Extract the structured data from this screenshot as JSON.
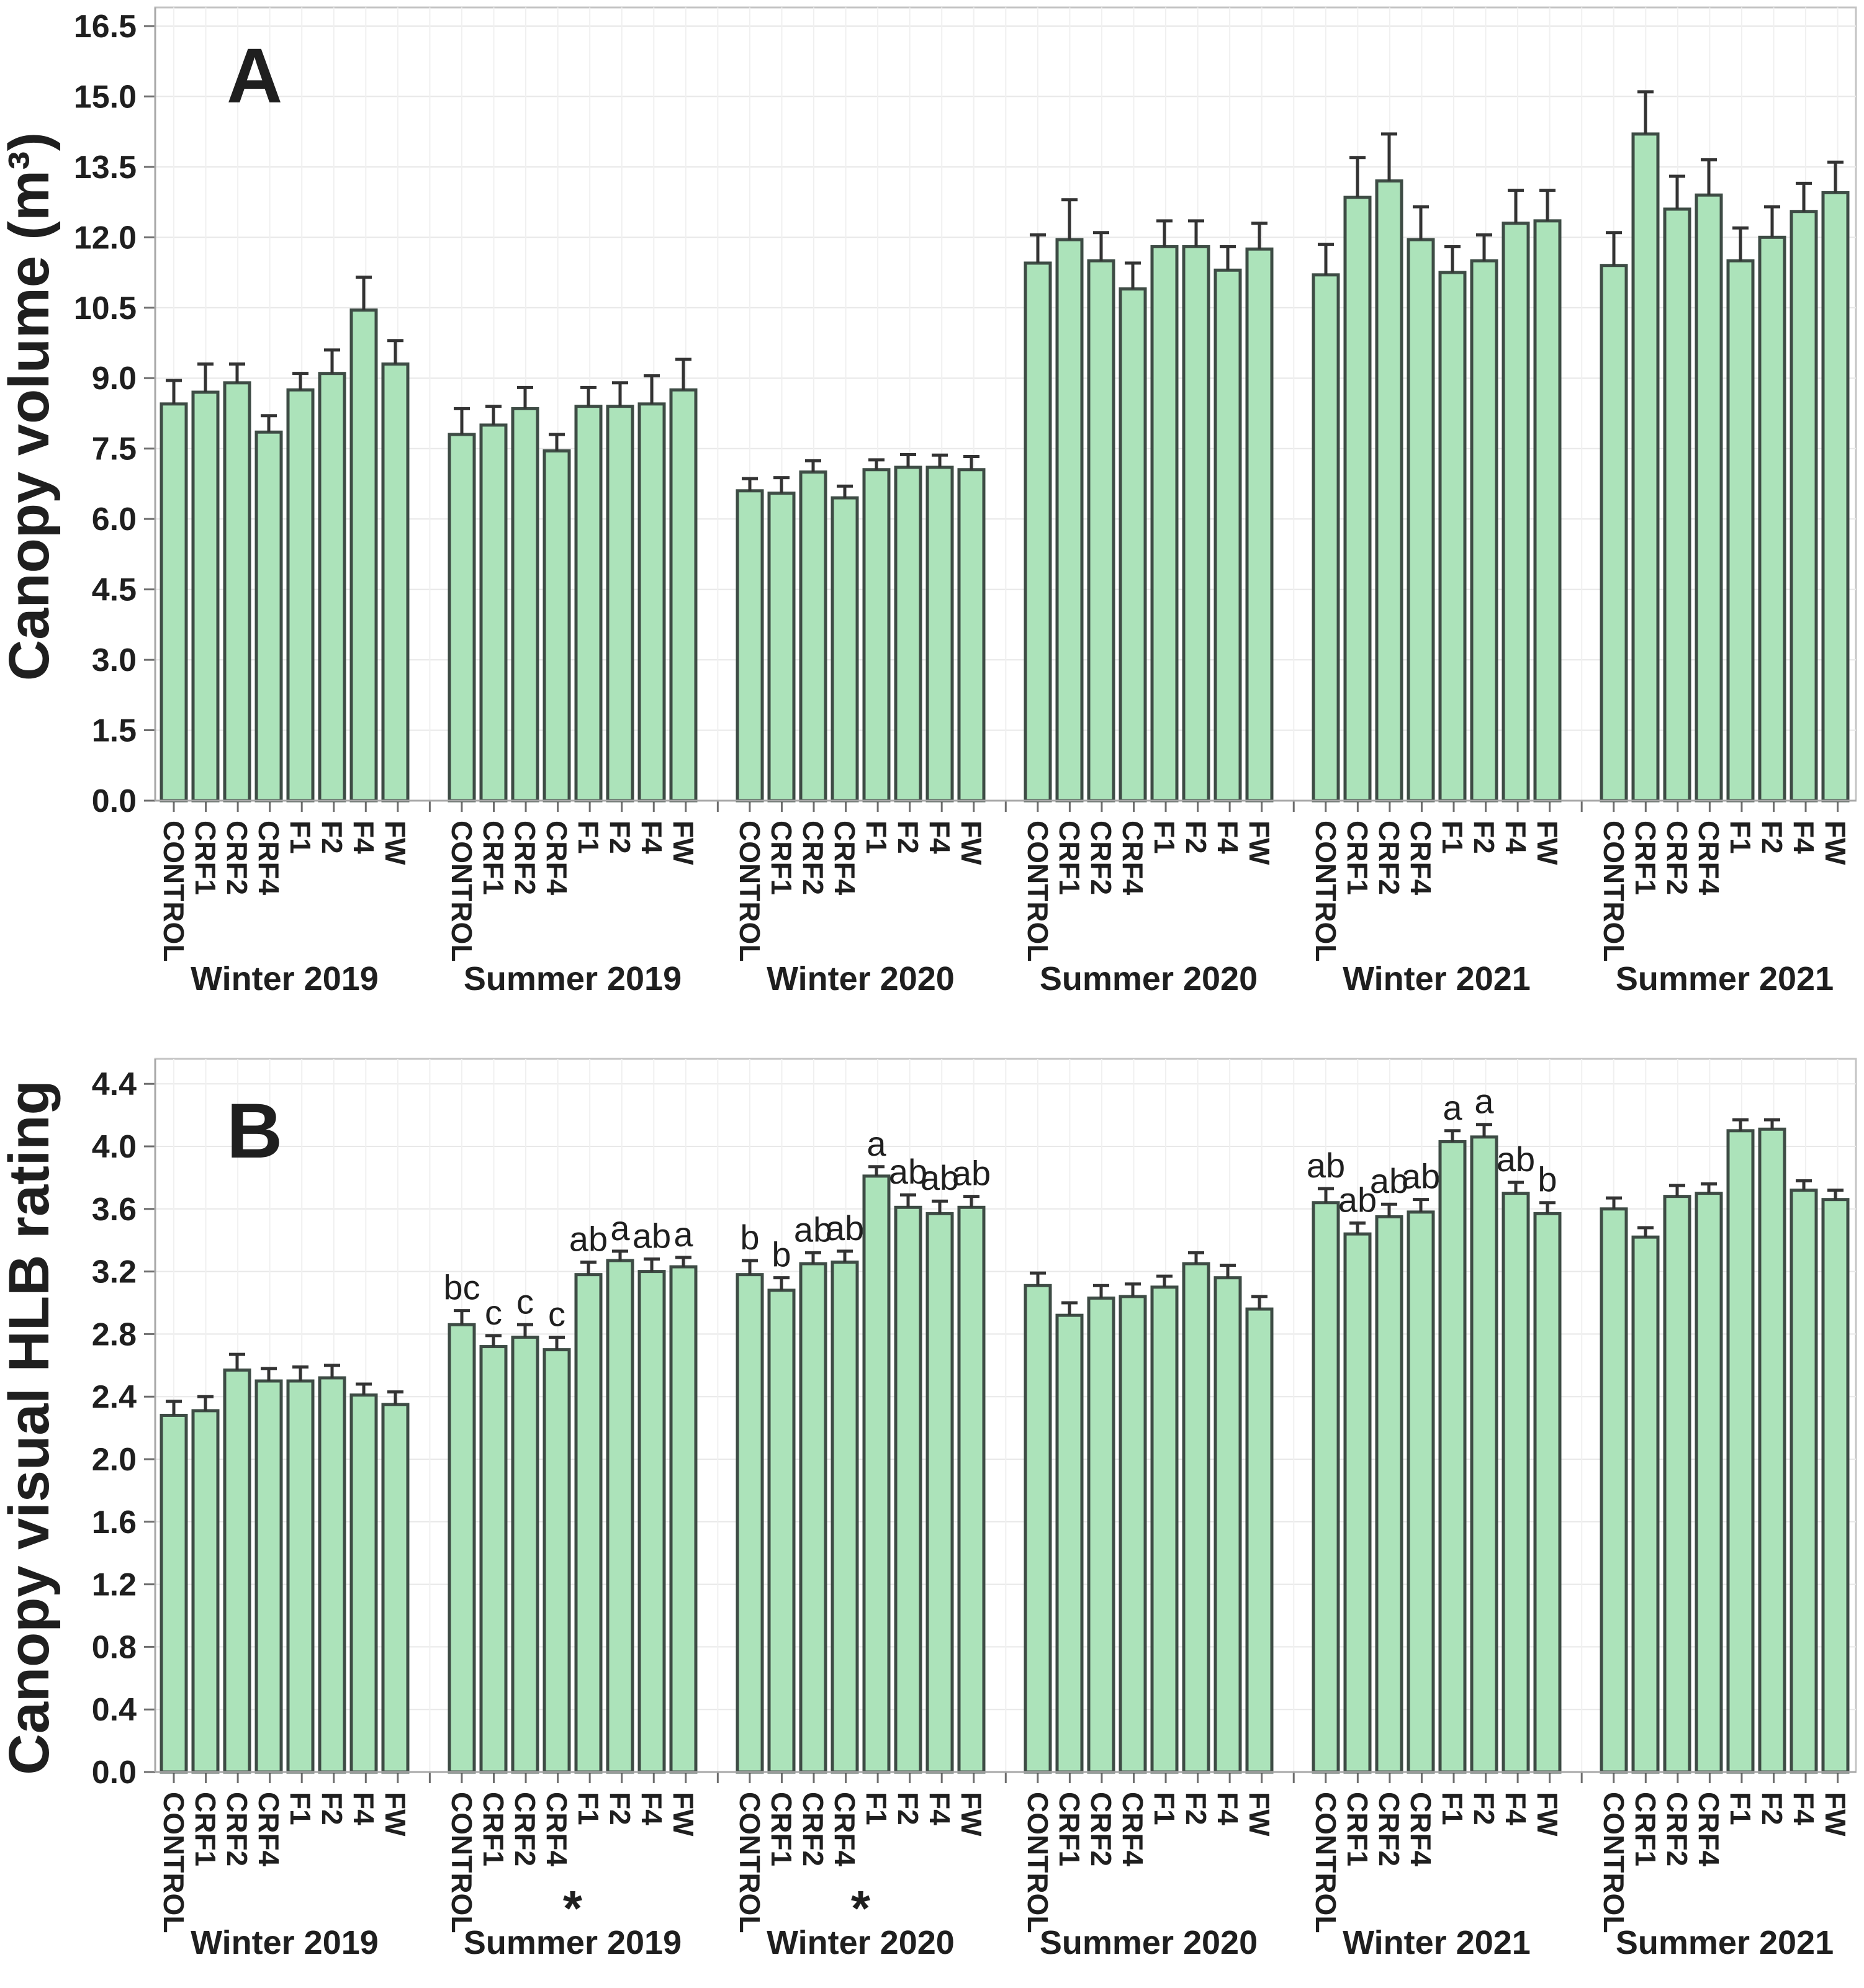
{
  "figure": {
    "background": "#ffffff",
    "description_visible_panels": [
      "A",
      "B"
    ]
  },
  "colors": {
    "bar_fill": "#ace3ba",
    "bar_edge": "#3e4c45",
    "error_bar": "#333333",
    "grid_horizontal": "#e8e8e8",
    "grid_vertical": "#f0f0f0",
    "frame": "#c4c4c4",
    "tick": "#6e6e6e",
    "text": "#1f1f1f"
  },
  "treatments": [
    "CONTROL",
    "CRF1",
    "CRF2",
    "CRF4",
    "F1",
    "F2",
    "F4",
    "FW"
  ],
  "groups": [
    "Winter 2019",
    "Summer 2019",
    "Winter 2020",
    "Summer 2020",
    "Winter 2021",
    "Summer 2021"
  ],
  "chart_data": [
    {
      "type": "bar",
      "panel_letter": "A",
      "ylabel": "Canopy volume (m³)",
      "xlabel": "",
      "ylim": [
        0,
        16.5
      ],
      "ytick_step": 1.5,
      "yticks": [
        "0.0",
        "1.5",
        "3.0",
        "4.5",
        "6.0",
        "7.5",
        "9.0",
        "10.5",
        "12.0",
        "13.5",
        "15.0",
        "16.5"
      ],
      "grid": true,
      "legend": "none",
      "categories": [
        "CONTROL",
        "CRF1",
        "CRF2",
        "CRF4",
        "F1",
        "F2",
        "F4",
        "FW"
      ],
      "series": [
        {
          "group": "Winter 2019",
          "values": [
            8.45,
            8.7,
            8.9,
            7.85,
            8.75,
            9.1,
            10.45,
            9.3
          ],
          "errors": [
            0.5,
            0.6,
            0.4,
            0.35,
            0.35,
            0.5,
            0.7,
            0.5
          ]
        },
        {
          "group": "Summer 2019",
          "values": [
            7.8,
            8.0,
            8.35,
            7.45,
            8.4,
            8.4,
            8.45,
            8.75
          ],
          "errors": [
            0.55,
            0.4,
            0.45,
            0.35,
            0.4,
            0.5,
            0.6,
            0.65
          ]
        },
        {
          "group": "Winter 2020",
          "values": [
            6.6,
            6.55,
            7.0,
            6.45,
            7.05,
            7.1,
            7.1,
            7.05
          ],
          "errors": [
            0.26,
            0.33,
            0.24,
            0.25,
            0.21,
            0.27,
            0.26,
            0.28
          ]
        },
        {
          "group": "Summer 2020",
          "values": [
            11.45,
            11.95,
            11.5,
            10.9,
            11.8,
            11.8,
            11.3,
            11.75
          ],
          "errors": [
            0.6,
            0.85,
            0.6,
            0.55,
            0.55,
            0.55,
            0.5,
            0.55
          ]
        },
        {
          "group": "Winter 2021",
          "values": [
            11.2,
            12.85,
            13.2,
            11.95,
            11.25,
            11.5,
            12.3,
            12.35
          ],
          "errors": [
            0.65,
            0.85,
            1.0,
            0.7,
            0.55,
            0.55,
            0.7,
            0.65
          ]
        },
        {
          "group": "Summer 2021",
          "values": [
            11.4,
            14.2,
            12.6,
            12.9,
            11.5,
            12.0,
            12.55,
            12.95
          ],
          "errors": [
            0.7,
            0.9,
            0.7,
            0.75,
            0.7,
            0.65,
            0.6,
            0.65
          ]
        }
      ],
      "asterisks": [
        false,
        false,
        false,
        false,
        false,
        false
      ]
    },
    {
      "type": "bar",
      "panel_letter": "B",
      "ylabel": "Canopy visual HLB rating",
      "xlabel": "",
      "ylim": [
        0,
        4.4
      ],
      "ytick_step": 0.4,
      "yticks": [
        "0.0",
        "0.4",
        "0.8",
        "1.2",
        "1.6",
        "2.0",
        "2.4",
        "2.8",
        "3.2",
        "3.6",
        "4.0",
        "4.4"
      ],
      "grid": true,
      "legend": "none",
      "categories": [
        "CONTROL",
        "CRF1",
        "CRF2",
        "CRF4",
        "F1",
        "F2",
        "F4",
        "FW"
      ],
      "series": [
        {
          "group": "Winter 2019",
          "values": [
            2.28,
            2.31,
            2.57,
            2.5,
            2.5,
            2.52,
            2.41,
            2.35
          ],
          "errors": [
            0.09,
            0.09,
            0.1,
            0.08,
            0.09,
            0.08,
            0.07,
            0.08
          ],
          "letters": [
            "",
            "",
            "",
            "",
            "",
            "",
            "",
            ""
          ]
        },
        {
          "group": "Summer 2019",
          "values": [
            2.86,
            2.72,
            2.78,
            2.7,
            3.18,
            3.27,
            3.2,
            3.23
          ],
          "errors": [
            0.09,
            0.07,
            0.08,
            0.08,
            0.08,
            0.06,
            0.08,
            0.06
          ],
          "letters": [
            "bc",
            "c",
            "c",
            "c",
            "ab",
            "a",
            "ab",
            "a"
          ]
        },
        {
          "group": "Winter 2020",
          "values": [
            3.18,
            3.08,
            3.25,
            3.26,
            3.81,
            3.61,
            3.57,
            3.61
          ],
          "errors": [
            0.09,
            0.08,
            0.07,
            0.07,
            0.06,
            0.08,
            0.08,
            0.07
          ],
          "letters": [
            "b",
            "b",
            "ab",
            "ab",
            "a",
            "ab",
            "ab",
            "ab"
          ]
        },
        {
          "group": "Summer 2020",
          "values": [
            3.11,
            2.92,
            3.03,
            3.04,
            3.1,
            3.25,
            3.16,
            2.96
          ],
          "errors": [
            0.08,
            0.08,
            0.08,
            0.08,
            0.07,
            0.07,
            0.08,
            0.08
          ],
          "letters": [
            "",
            "",
            "",
            "",
            "",
            "",
            "",
            ""
          ]
        },
        {
          "group": "Winter 2021",
          "values": [
            3.64,
            3.44,
            3.55,
            3.58,
            4.03,
            4.06,
            3.7,
            3.57
          ],
          "errors": [
            0.09,
            0.07,
            0.08,
            0.08,
            0.07,
            0.08,
            0.07,
            0.07
          ],
          "letters": [
            "ab",
            "ab",
            "ab",
            "ab",
            "a",
            "a",
            "ab",
            "b"
          ]
        },
        {
          "group": "Summer 2021",
          "values": [
            3.6,
            3.42,
            3.68,
            3.7,
            4.1,
            4.11,
            3.72,
            3.66
          ],
          "errors": [
            0.07,
            0.06,
            0.07,
            0.06,
            0.07,
            0.06,
            0.06,
            0.06
          ],
          "letters": [
            "",
            "",
            "",
            "",
            "",
            "",
            "",
            ""
          ]
        }
      ],
      "asterisks": [
        false,
        true,
        true,
        false,
        false,
        false
      ],
      "asterisk_symbol": "*"
    }
  ]
}
